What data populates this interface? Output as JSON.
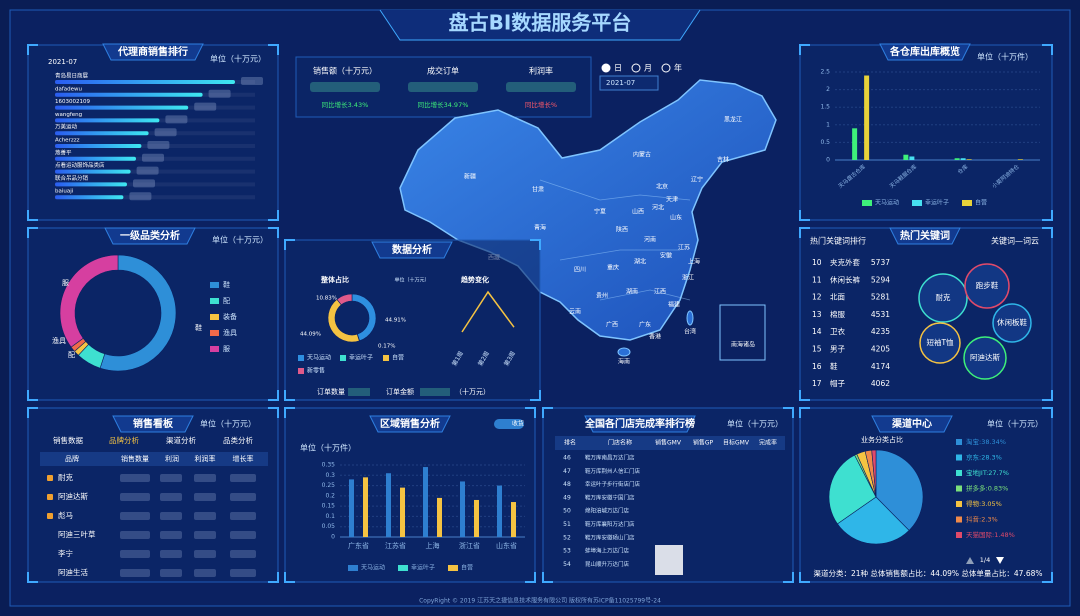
{
  "header": {
    "title": "盘古BI数据服务平台"
  },
  "agent_ranking": {
    "type": "bar",
    "title": "代理商销售排行",
    "unit": "单位（十万元）",
    "date": "2021-07",
    "categories": [
      "青岛易日商展",
      "dafadewu",
      "1603002109",
      "wangfeng",
      "万美运动",
      "Acherzzz",
      "燕善平",
      "点看运动服饰品类店",
      "联合吊品分销",
      "baiuaji"
    ],
    "values": [
      100,
      82,
      74,
      58,
      52,
      48,
      45,
      42,
      40,
      38
    ]
  },
  "category_analysis": {
    "type": "donut",
    "title": "一级品类分析",
    "unit": "单位（十万元）",
    "categories": [
      "鞋",
      "配",
      "装备",
      "渔具",
      "服"
    ],
    "values": [
      55,
      7,
      1.5,
      1.5,
      35
    ],
    "colors": [
      "#2e8fd8",
      "#3ee0d0",
      "#f5c342",
      "#f06a4a",
      "#d63fa0"
    ]
  },
  "kpis": {
    "items": [
      {
        "label": "销售额（十万元）",
        "change": "同比增长3.43%",
        "color": "#3ef07a"
      },
      {
        "label": "成交订单",
        "change": "同比增长34.97%",
        "color": "#3ef07a"
      },
      {
        "label": "利润率",
        "change": "同比增长%",
        "color": "#ff5a6a"
      }
    ]
  },
  "date_filter": {
    "options": [
      "日",
      "月",
      "年"
    ],
    "date": "2021-07"
  },
  "map": {
    "regions": [
      "新疆",
      "西藏",
      "青海",
      "甘肃",
      "内蒙古",
      "黑龙江",
      "吉林",
      "辽宁",
      "北京",
      "天津",
      "河北",
      "山西",
      "宁夏",
      "陕西",
      "山东",
      "河南",
      "江苏",
      "安徽",
      "上海",
      "湖北",
      "四川",
      "重庆",
      "浙江",
      "湖南",
      "江西",
      "贵州",
      "云南",
      "福建",
      "广西",
      "广东",
      "台湾",
      "香港",
      "海南",
      "南海诸岛"
    ]
  },
  "data_analysis": {
    "title": "数据分析",
    "share": {
      "type": "donut",
      "title": "整体占比",
      "unit": "单位（十万元）",
      "series": [
        "天马运动",
        "幸运叶子",
        "自营",
        "新零售"
      ],
      "values": [
        44.91,
        0.17,
        44.09,
        10.83
      ],
      "value_labels": [
        "44.91%",
        "0.17%",
        "44.09%",
        "10.83%"
      ],
      "colors": [
        "#2e8fe0",
        "#3ee0d0",
        "#f5c342",
        "#e05a8a"
      ]
    },
    "trend": {
      "type": "line",
      "title": "趋势变化",
      "categories": [
        "第1周",
        "第2周",
        "第3周"
      ],
      "values": [
        5,
        30,
        8
      ],
      "color": "#f5c342"
    },
    "order_count": "订单数量",
    "order_amount": "订单金额",
    "amount_unit": "（十万元）"
  },
  "warehouse": {
    "type": "bar",
    "title": "各仓库出库概览",
    "unit": "单位（十万件）",
    "categories": [
      "天马盘古仓库",
      "天马鞋服仓库",
      "仓库",
      "小莫阿迪特仓"
    ],
    "series": [
      {
        "name": "天马运动",
        "color": "#3ef07a",
        "values": [
          0.9,
          0.15,
          0.05,
          0
        ]
      },
      {
        "name": "幸运叶子",
        "color": "#47e0f0",
        "values": [
          0,
          0.1,
          0.05,
          0
        ]
      },
      {
        "name": "自营",
        "color": "#e8d23a",
        "values": [
          2.4,
          0,
          0.02,
          0.02
        ]
      }
    ],
    "ylim": [
      0,
      2.5
    ],
    "yticks": [
      0,
      0.5,
      1,
      1.5,
      2,
      2.5
    ],
    "grid": true
  },
  "keywords": {
    "title": "热门关键词",
    "tabs": [
      "热门关键词排行",
      "关键词—词云"
    ],
    "ranking": [
      [
        10,
        "夹克外套",
        5737
      ],
      [
        11,
        "休闲长裤",
        5294
      ],
      [
        12,
        "北面",
        5281
      ],
      [
        13,
        "棉服",
        4531
      ],
      [
        14,
        "卫衣",
        4235
      ],
      [
        15,
        "男子",
        4205
      ],
      [
        16,
        "鞋",
        4174
      ],
      [
        17,
        "帽子",
        4062
      ]
    ],
    "cloud": [
      "耐克",
      "跑步鞋",
      "休闲板鞋",
      "短袖T恤",
      "阿迪达斯"
    ]
  },
  "sales_board": {
    "title": "销售看板",
    "unit": "单位（十万元）",
    "tabs": [
      "销售数据",
      "品牌分析",
      "渠道分析",
      "品类分析"
    ],
    "active_tab": 1,
    "columns": [
      "品牌",
      "销售数量",
      "利润",
      "利润率",
      "增长率"
    ],
    "brands": [
      "耐克",
      "阿迪达斯",
      "彪马",
      "阿迪三叶草",
      "李宁",
      "阿迪生活"
    ]
  },
  "region_sales": {
    "type": "bar",
    "title": "区域销售分析",
    "toggle": "收货",
    "unit": "单位（十万件）",
    "categories": [
      "广东省",
      "江苏省",
      "上海",
      "浙江省",
      "山东省"
    ],
    "series": [
      {
        "name": "天马运动",
        "color": "#2e7fd0",
        "values": [
          0.28,
          0.31,
          0.34,
          0.27,
          0.25
        ]
      },
      {
        "name": "幸运叶子",
        "color": "#3ee0d0",
        "values": [
          0,
          0,
          0,
          0,
          0
        ]
      },
      {
        "name": "自营",
        "color": "#f5c342",
        "values": [
          0.29,
          0.24,
          0.19,
          0.18,
          0.17
        ]
      }
    ],
    "ylim": [
      0,
      0.35
    ],
    "yticks": [
      0,
      0.05,
      0.1,
      0.15,
      0.2,
      0.25,
      0.3,
      0.35
    ],
    "grid": true
  },
  "store_ranking": {
    "title": "全国各门店完成率排行榜",
    "unit": "单位（十万元）",
    "columns": [
      "排名",
      "门店名称",
      "销售GMV",
      "销售GP",
      "目标GMV",
      "完成率"
    ],
    "rows": [
      [
        46,
        "鞋万库南昌万达门店"
      ],
      [
        47,
        "鞋万库荆州人信汇门店"
      ],
      [
        48,
        "幸运叶子步行街店门店"
      ],
      [
        49,
        "鞋万库安徽宁国门店"
      ],
      [
        50,
        "绵阳涪城万达门店"
      ],
      [
        51,
        "鞋万库襄阳万达门店"
      ],
      [
        52,
        "鞋万库安徽砀山门店"
      ],
      [
        53,
        "蚌埠海上万达门店"
      ],
      [
        54,
        "昆山顺升万达门店"
      ]
    ]
  },
  "channel": {
    "type": "pie",
    "title": "渠道中心",
    "unit": "单位（十万元）",
    "subtitle": "业务分类占比",
    "values": [
      38.34,
      28.3,
      27.7,
      0.83,
      3.05,
      2.3,
      1.48
    ],
    "value_labels": [
      "淘宝:38.34%",
      "京东:28.3%",
      "宝地JIT:27.7%",
      "拼多多:0.83%",
      "得物:3.05%",
      "抖音:2.3%",
      "天猫国际:1.48%"
    ],
    "colors": [
      "#2e8fd8",
      "#2fb6e8",
      "#3ee0d0",
      "#7be07b",
      "#f5c342",
      "#f08a4a",
      "#e04a6a"
    ],
    "pager": "1/4",
    "summary": "渠道分类：21种  总体销售额占比：44.09%  总体单量占比：47.68%"
  },
  "footer": "CopyRight © 2019 江苏天之捷信息技术服务有限公司 版权所有苏ICP备11025799号-24"
}
